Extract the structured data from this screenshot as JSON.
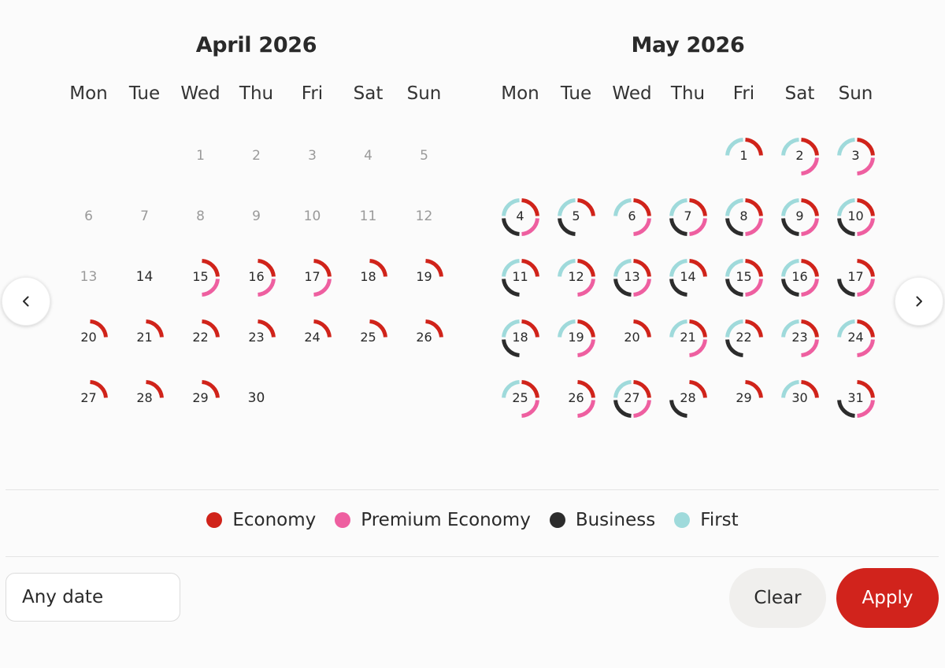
{
  "colors": {
    "economy": "#d0231a",
    "premium_economy": "#ee5fa0",
    "business": "#2c2c2c",
    "first": "#9fdadb",
    "apply": "#d1231c"
  },
  "weekday_labels": [
    "Mon",
    "Tue",
    "Wed",
    "Thu",
    "Fri",
    "Sat",
    "Sun"
  ],
  "months": [
    {
      "title": "April 2026",
      "start_weekday": 2,
      "days_in_month": 30,
      "past_days": [
        1,
        2,
        3,
        4,
        5,
        6,
        7,
        8,
        9,
        10,
        11,
        12,
        13
      ],
      "availability": {
        "15": [
          "E",
          "P"
        ],
        "16": [
          "E",
          "P"
        ],
        "17": [
          "E",
          "P"
        ],
        "18": [
          "E"
        ],
        "19": [
          "E"
        ],
        "20": [
          "E"
        ],
        "21": [
          "E"
        ],
        "22": [
          "E"
        ],
        "23": [
          "E"
        ],
        "24": [
          "E"
        ],
        "25": [
          "E"
        ],
        "26": [
          "E"
        ],
        "27": [
          "E"
        ],
        "28": [
          "E"
        ],
        "29": [
          "E"
        ]
      }
    },
    {
      "title": "May 2026",
      "start_weekday": 4,
      "days_in_month": 31,
      "past_days": [],
      "availability": {
        "1": [
          "F",
          "E"
        ],
        "2": [
          "F",
          "E",
          "P"
        ],
        "3": [
          "F",
          "E",
          "P"
        ],
        "4": [
          "F",
          "E",
          "P",
          "B"
        ],
        "5": [
          "F",
          "E",
          "B"
        ],
        "6": [
          "F",
          "E",
          "P"
        ],
        "7": [
          "F",
          "E",
          "P",
          "B"
        ],
        "8": [
          "F",
          "E",
          "P",
          "B"
        ],
        "9": [
          "F",
          "E",
          "P",
          "B"
        ],
        "10": [
          "F",
          "E",
          "P",
          "B"
        ],
        "11": [
          "F",
          "E",
          "B"
        ],
        "12": [
          "F",
          "E",
          "P"
        ],
        "13": [
          "F",
          "E",
          "P",
          "B"
        ],
        "14": [
          "F",
          "E",
          "B"
        ],
        "15": [
          "F",
          "E",
          "P",
          "B"
        ],
        "16": [
          "F",
          "E",
          "P",
          "B"
        ],
        "17": [
          "E",
          "P",
          "B"
        ],
        "18": [
          "F",
          "E",
          "B"
        ],
        "19": [
          "F",
          "E",
          "P"
        ],
        "20": [
          "E"
        ],
        "21": [
          "F",
          "E",
          "P"
        ],
        "22": [
          "F",
          "E",
          "B"
        ],
        "23": [
          "F",
          "E",
          "P"
        ],
        "24": [
          "F",
          "E",
          "P"
        ],
        "25": [
          "F",
          "E",
          "P"
        ],
        "26": [
          "E",
          "P"
        ],
        "27": [
          "F",
          "E",
          "P",
          "B"
        ],
        "28": [
          "E",
          "B"
        ],
        "29": [
          "E"
        ],
        "30": [
          "F",
          "E"
        ],
        "31": [
          "E",
          "P",
          "B"
        ]
      }
    }
  ],
  "legend": [
    {
      "label": "Economy",
      "key": "economy"
    },
    {
      "label": "Premium Economy",
      "key": "premium_economy"
    },
    {
      "label": "Business",
      "key": "business"
    },
    {
      "label": "First",
      "key": "first"
    }
  ],
  "nav": {
    "prev_icon": "chevron-left-icon",
    "next_icon": "chevron-right-icon"
  },
  "footer": {
    "date_field_value": "Any date",
    "clear_label": "Clear",
    "apply_label": "Apply"
  }
}
